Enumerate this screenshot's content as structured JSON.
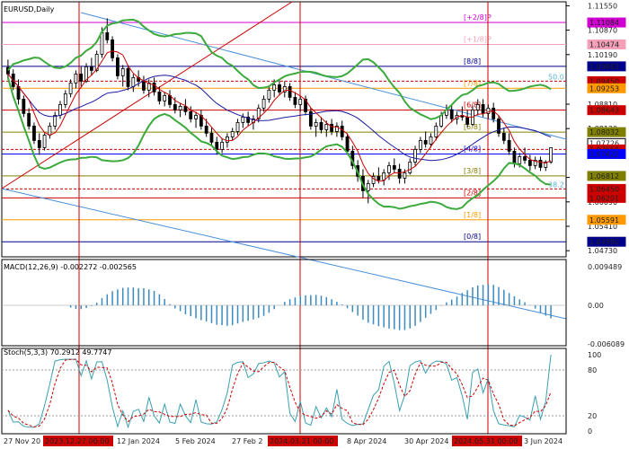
{
  "chart_data": [
    {
      "type": "candlestick",
      "title": "EURUSD,Daily",
      "y_axis_ticks": [
        "1.11550",
        "1.10870",
        "1.10190",
        "1.08810",
        "1.08130",
        "1.06770",
        "1.06090",
        "1.05410",
        "1.04730"
      ],
      "price_labels": [
        {
          "text": "1.11084",
          "value": 1.11084,
          "color": "#d000d0"
        },
        {
          "text": "1.10474",
          "value": 1.10474,
          "color": "#f4a0b8"
        },
        {
          "text": "1.09863",
          "value": 1.09863,
          "color": "#00008b"
        },
        {
          "text": "1.09450",
          "value": 1.0945,
          "color": "#cc0000"
        },
        {
          "text": "1.09253",
          "value": 1.09253,
          "color": "#ff9900"
        },
        {
          "text": "1.08643",
          "value": 1.08643,
          "color": "#cc0000"
        },
        {
          "text": "1.08032",
          "value": 1.08032,
          "color": "#808000"
        },
        {
          "text": "1.07726",
          "value": 1.07726,
          "color": "#ffffff"
        },
        {
          "text": "1.07550",
          "value": 1.0755,
          "color": "#cc0000"
        },
        {
          "text": "1.07422",
          "value": 1.07422,
          "color": "#0000ff"
        },
        {
          "text": "1.06812",
          "value": 1.06812,
          "color": "#808000"
        },
        {
          "text": "1.06450",
          "value": 1.0645,
          "color": "#cc0000"
        },
        {
          "text": "1.06201",
          "value": 1.06201,
          "color": "#cc0000"
        },
        {
          "text": "1.05591",
          "value": 1.05591,
          "color": "#ff9900"
        },
        {
          "text": "1.04980",
          "value": 1.0498,
          "color": "#00008b"
        }
      ],
      "murrey_levels": [
        {
          "label": "[+2/8]P",
          "value": 1.11084,
          "color": "#d000d0"
        },
        {
          "label": "[+1/8]P",
          "value": 1.10474,
          "color": "#f4a0b8"
        },
        {
          "label": "[8/8]",
          "value": 1.09863,
          "color": "#00008b"
        },
        {
          "label": "[7/8]",
          "value": 1.09253,
          "color": "#ff9900"
        },
        {
          "label": "[6/8]",
          "value": 1.08643,
          "color": "#cc0000"
        },
        {
          "label": "[5/8]",
          "value": 1.08032,
          "color": "#808000"
        },
        {
          "label": "[4/8]",
          "value": 1.07422,
          "color": "#0000ff"
        },
        {
          "label": "[3/8]",
          "value": 1.06812,
          "color": "#808000"
        },
        {
          "label": "[2/8]",
          "value": 1.06201,
          "color": "#cc0000"
        },
        {
          "label": "[1/8]",
          "value": 1.05591,
          "color": "#ff9900"
        },
        {
          "label": "[0/8]",
          "value": 1.0498,
          "color": "#00008b"
        }
      ],
      "fib_labels": [
        {
          "label": "50.0",
          "value": 1.0945
        },
        {
          "label": "38.2",
          "value": 1.0645
        }
      ],
      "x_labels": [
        "27 Nov 20",
        "2023.12.27 00:00",
        "12 Jan 2024",
        "5 Feb 2024",
        "27 Feb 2",
        "2024.03.21 00:00",
        "8 Apr 2024",
        "30 Apr 2024",
        "2024.05.31 00:00",
        "3 Jun 2024"
      ],
      "highlighted_x_labels": [
        "2023.12.27 00:00",
        "2024.03.21 00:00",
        "2024.05.31 00:00"
      ],
      "y_range": [
        1.0456,
        1.1166
      ],
      "candles": [
        [
          1.0983,
          1.1005,
          1.095,
          1.0965
        ],
        [
          1.0965,
          1.0978,
          1.092,
          1.093
        ],
        [
          1.093,
          1.095,
          1.088,
          1.0895
        ],
        [
          1.0895,
          1.0905,
          1.0845,
          1.0855
        ],
        [
          1.0855,
          1.087,
          1.081,
          1.082
        ],
        [
          1.082,
          1.083,
          1.077,
          1.078
        ],
        [
          1.078,
          1.08,
          1.074,
          1.076
        ],
        [
          1.076,
          1.08,
          1.0752,
          1.0795
        ],
        [
          1.0795,
          1.083,
          1.0785,
          1.082
        ],
        [
          1.082,
          1.086,
          1.081,
          1.085
        ],
        [
          1.085,
          1.089,
          1.084,
          1.088
        ],
        [
          1.088,
          1.092,
          1.087,
          1.091
        ],
        [
          1.091,
          1.095,
          1.09,
          1.094
        ],
        [
          1.094,
          1.0975,
          1.0925,
          1.0965
        ],
        [
          1.0965,
          1.0985,
          1.093,
          1.0945
        ],
        [
          1.0945,
          1.0995,
          1.094,
          1.0985
        ],
        [
          1.0985,
          1.101,
          1.096,
          1.0975
        ],
        [
          1.0975,
          1.103,
          1.097,
          1.102
        ],
        [
          1.102,
          1.1095,
          1.101,
          1.108
        ],
        [
          1.108,
          1.112,
          1.105,
          1.106
        ],
        [
          1.106,
          1.107,
          1.1,
          1.101
        ],
        [
          1.101,
          1.102,
          1.095,
          1.096
        ],
        [
          1.096,
          1.099,
          1.093,
          1.098
        ],
        [
          1.098,
          1.099,
          1.092,
          1.093
        ],
        [
          1.093,
          1.0965,
          1.0915,
          1.0955
        ],
        [
          1.0955,
          1.0975,
          1.093,
          1.0945
        ],
        [
          1.0945,
          1.096,
          1.091,
          1.092
        ],
        [
          1.092,
          1.095,
          1.09,
          1.094
        ],
        [
          1.094,
          1.0955,
          1.0905,
          1.0915
        ],
        [
          1.0915,
          1.093,
          1.088,
          1.089
        ],
        [
          1.089,
          1.0915,
          1.0875,
          1.0905
        ],
        [
          1.0905,
          1.092,
          1.087,
          1.088
        ],
        [
          1.088,
          1.09,
          1.0855,
          1.0865
        ],
        [
          1.0865,
          1.0885,
          1.0845,
          1.0875
        ],
        [
          1.0875,
          1.0895,
          1.085,
          1.086
        ],
        [
          1.086,
          1.0875,
          1.083,
          1.084
        ],
        [
          1.084,
          1.086,
          1.0815,
          1.085
        ],
        [
          1.085,
          1.0865,
          1.081,
          1.082
        ],
        [
          1.082,
          1.084,
          1.079,
          1.08
        ],
        [
          1.08,
          1.0815,
          1.0765,
          1.0775
        ],
        [
          1.0775,
          1.079,
          1.074,
          1.0755
        ],
        [
          1.0755,
          1.0785,
          1.0745,
          1.0775
        ],
        [
          1.0775,
          1.08,
          1.076,
          1.079
        ],
        [
          1.079,
          1.0815,
          1.078,
          1.0805
        ],
        [
          1.0805,
          1.084,
          1.0795,
          1.083
        ],
        [
          1.083,
          1.0855,
          1.0815,
          1.0845
        ],
        [
          1.0845,
          1.086,
          1.082,
          1.083
        ],
        [
          1.083,
          1.085,
          1.081,
          1.084
        ],
        [
          1.084,
          1.088,
          1.083,
          1.087
        ],
        [
          1.087,
          1.0905,
          1.086,
          1.0895
        ],
        [
          1.0895,
          1.093,
          1.0885,
          1.092
        ],
        [
          1.092,
          1.095,
          1.09,
          1.0935
        ],
        [
          1.0935,
          1.095,
          1.0905,
          1.0915
        ],
        [
          1.0915,
          1.0945,
          1.09,
          1.093
        ],
        [
          1.093,
          1.094,
          1.089,
          1.09
        ],
        [
          1.09,
          1.0915,
          1.087,
          1.088
        ],
        [
          1.088,
          1.0905,
          1.086,
          1.0895
        ],
        [
          1.0895,
          1.0905,
          1.085,
          1.086
        ],
        [
          1.086,
          1.087,
          1.081,
          1.082
        ],
        [
          1.082,
          1.084,
          1.079,
          1.083
        ],
        [
          1.083,
          1.0845,
          1.08,
          1.081
        ],
        [
          1.081,
          1.0835,
          1.079,
          1.0825
        ],
        [
          1.0825,
          1.084,
          1.0795,
          1.0805
        ],
        [
          1.0805,
          1.083,
          1.079,
          1.082
        ],
        [
          1.082,
          1.0835,
          1.078,
          1.079
        ],
        [
          1.079,
          1.08,
          1.074,
          1.075
        ],
        [
          1.075,
          1.0765,
          1.07,
          1.071
        ],
        [
          1.071,
          1.0725,
          1.0665,
          1.068
        ],
        [
          1.068,
          1.07,
          1.062,
          1.064
        ],
        [
          1.064,
          1.067,
          1.0605,
          1.066
        ],
        [
          1.066,
          1.069,
          1.065,
          1.068
        ],
        [
          1.068,
          1.0705,
          1.066,
          1.067
        ],
        [
          1.067,
          1.07,
          1.0655,
          1.069
        ],
        [
          1.069,
          1.072,
          1.067,
          1.071
        ],
        [
          1.071,
          1.073,
          1.069,
          1.07
        ],
        [
          1.07,
          1.0715,
          1.066,
          1.0675
        ],
        [
          1.0675,
          1.07,
          1.066,
          1.069
        ],
        [
          1.069,
          1.073,
          1.0685,
          1.072
        ],
        [
          1.072,
          1.0765,
          1.071,
          1.0755
        ],
        [
          1.0755,
          1.079,
          1.0745,
          1.078
        ],
        [
          1.078,
          1.0805,
          1.076,
          1.077
        ],
        [
          1.077,
          1.08,
          1.076,
          1.079
        ],
        [
          1.079,
          1.083,
          1.078,
          1.082
        ],
        [
          1.082,
          1.086,
          1.0815,
          1.085
        ],
        [
          1.085,
          1.088,
          1.084,
          1.0865
        ],
        [
          1.0865,
          1.088,
          1.083,
          1.084
        ],
        [
          1.084,
          1.086,
          1.0825,
          1.085
        ],
        [
          1.085,
          1.0875,
          1.0835,
          1.0845
        ],
        [
          1.0845,
          1.0865,
          1.0815,
          1.0825
        ],
        [
          1.0825,
          1.0875,
          1.082,
          1.0865
        ],
        [
          1.0865,
          1.0895,
          1.085,
          1.088
        ],
        [
          1.088,
          1.0895,
          1.0845,
          1.0855
        ],
        [
          1.0855,
          1.088,
          1.084,
          1.087
        ],
        [
          1.087,
          1.0885,
          1.083,
          1.084
        ],
        [
          1.084,
          1.085,
          1.079,
          1.08
        ],
        [
          1.08,
          1.0815,
          1.077,
          1.078
        ],
        [
          1.078,
          1.08,
          1.074,
          1.075
        ],
        [
          1.075,
          1.076,
          1.0705,
          1.0715
        ],
        [
          1.0715,
          1.0745,
          1.0705,
          1.0735
        ],
        [
          1.0735,
          1.076,
          1.0715,
          1.0725
        ],
        [
          1.0725,
          1.074,
          1.0695,
          1.071
        ],
        [
          1.071,
          1.0735,
          1.07,
          1.0725
        ],
        [
          1.0725,
          1.0735,
          1.0695,
          1.0705
        ],
        [
          1.0705,
          1.0725,
          1.0695,
          1.072
        ],
        [
          1.072,
          1.076,
          1.0715,
          1.076
        ]
      ],
      "macd": {
        "label": "MACD(12,26,9) -0.002272 -0.002565",
        "ticks": [
          "0.009489",
          "0.00",
          "-0.006089"
        ]
      },
      "stoch": {
        "label": "Stoch(5,3,3) 70.2912 49.7747",
        "ticks": [
          "100",
          "80",
          "20",
          "0"
        ]
      }
    }
  ]
}
